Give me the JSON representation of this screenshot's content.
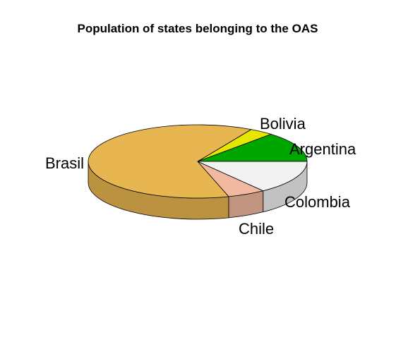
{
  "chart_data": {
    "type": "pie",
    "style": "3d",
    "title": "Population of states belonging to the OAS",
    "slices": [
      {
        "label": "Argentina",
        "value": 45,
        "color": "#00a600"
      },
      {
        "label": "Bolivia",
        "value": 12,
        "color": "#e6e600"
      },
      {
        "label": "Brasil",
        "value": 212,
        "color": "#e8b650"
      },
      {
        "label": "Chile",
        "value": 19,
        "color": "#f1b9a0"
      },
      {
        "label": "Colombia",
        "value": 50,
        "color": "#f2f2f2"
      }
    ]
  }
}
